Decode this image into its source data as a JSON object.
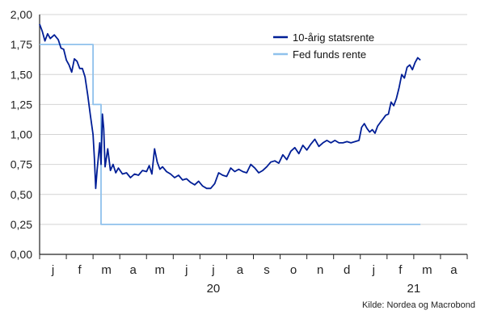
{
  "chart_data": {
    "type": "line",
    "ylim": [
      0,
      2
    ],
    "yticks": [
      "0,00",
      "0,25",
      "0,50",
      "0,75",
      "1,00",
      "1,25",
      "1,50",
      "1,75",
      "2,00"
    ],
    "month_labels": [
      "j",
      "f",
      "m",
      "a",
      "m",
      "j",
      "j",
      "a",
      "s",
      "o",
      "n",
      "d",
      "j",
      "f",
      "m",
      "a"
    ],
    "year_labels": [
      {
        "text": "20",
        "month_index": 6.5
      },
      {
        "text": "21",
        "month_index": 14.0
      }
    ],
    "grid": true,
    "legend_position": "top-right",
    "series": [
      {
        "name": "10-årig statsrente",
        "color": "#001e96",
        "points": [
          [
            0.0,
            1.92
          ],
          [
            0.1,
            1.86
          ],
          [
            0.2,
            1.78
          ],
          [
            0.3,
            1.84
          ],
          [
            0.4,
            1.8
          ],
          [
            0.55,
            1.83
          ],
          [
            0.7,
            1.79
          ],
          [
            0.8,
            1.72
          ],
          [
            0.9,
            1.71
          ],
          [
            1.0,
            1.62
          ],
          [
            1.1,
            1.58
          ],
          [
            1.2,
            1.52
          ],
          [
            1.3,
            1.63
          ],
          [
            1.4,
            1.61
          ],
          [
            1.5,
            1.55
          ],
          [
            1.6,
            1.55
          ],
          [
            1.7,
            1.48
          ],
          [
            1.8,
            1.33
          ],
          [
            1.9,
            1.16
          ],
          [
            2.0,
            1.0
          ],
          [
            2.05,
            0.8
          ],
          [
            2.1,
            0.55
          ],
          [
            2.15,
            0.7
          ],
          [
            2.25,
            0.93
          ],
          [
            2.3,
            0.75
          ],
          [
            2.35,
            1.17
          ],
          [
            2.4,
            1.05
          ],
          [
            2.45,
            0.73
          ],
          [
            2.55,
            0.88
          ],
          [
            2.65,
            0.7
          ],
          [
            2.75,
            0.75
          ],
          [
            2.85,
            0.68
          ],
          [
            2.95,
            0.72
          ],
          [
            3.1,
            0.67
          ],
          [
            3.25,
            0.68
          ],
          [
            3.4,
            0.64
          ],
          [
            3.55,
            0.67
          ],
          [
            3.7,
            0.66
          ],
          [
            3.85,
            0.7
          ],
          [
            4.0,
            0.69
          ],
          [
            4.1,
            0.74
          ],
          [
            4.2,
            0.67
          ],
          [
            4.3,
            0.88
          ],
          [
            4.4,
            0.77
          ],
          [
            4.5,
            0.71
          ],
          [
            4.6,
            0.73
          ],
          [
            4.75,
            0.69
          ],
          [
            4.9,
            0.67
          ],
          [
            5.05,
            0.64
          ],
          [
            5.2,
            0.66
          ],
          [
            5.35,
            0.62
          ],
          [
            5.5,
            0.63
          ],
          [
            5.65,
            0.6
          ],
          [
            5.8,
            0.58
          ],
          [
            5.95,
            0.61
          ],
          [
            6.1,
            0.57
          ],
          [
            6.25,
            0.55
          ],
          [
            6.4,
            0.55
          ],
          [
            6.55,
            0.59
          ],
          [
            6.7,
            0.68
          ],
          [
            6.85,
            0.66
          ],
          [
            7.0,
            0.65
          ],
          [
            7.15,
            0.72
          ],
          [
            7.3,
            0.69
          ],
          [
            7.45,
            0.71
          ],
          [
            7.6,
            0.69
          ],
          [
            7.75,
            0.68
          ],
          [
            7.9,
            0.75
          ],
          [
            8.05,
            0.72
          ],
          [
            8.2,
            0.68
          ],
          [
            8.35,
            0.7
          ],
          [
            8.5,
            0.73
          ],
          [
            8.65,
            0.77
          ],
          [
            8.8,
            0.78
          ],
          [
            8.95,
            0.76
          ],
          [
            9.1,
            0.83
          ],
          [
            9.25,
            0.79
          ],
          [
            9.4,
            0.86
          ],
          [
            9.55,
            0.89
          ],
          [
            9.7,
            0.84
          ],
          [
            9.85,
            0.91
          ],
          [
            10.0,
            0.87
          ],
          [
            10.15,
            0.92
          ],
          [
            10.3,
            0.96
          ],
          [
            10.45,
            0.9
          ],
          [
            10.6,
            0.93
          ],
          [
            10.75,
            0.95
          ],
          [
            10.9,
            0.93
          ],
          [
            11.05,
            0.95
          ],
          [
            11.2,
            0.93
          ],
          [
            11.35,
            0.93
          ],
          [
            11.5,
            0.94
          ],
          [
            11.65,
            0.93
          ],
          [
            11.8,
            0.94
          ],
          [
            11.95,
            0.95
          ],
          [
            12.05,
            1.06
          ],
          [
            12.15,
            1.09
          ],
          [
            12.25,
            1.05
          ],
          [
            12.35,
            1.02
          ],
          [
            12.45,
            1.04
          ],
          [
            12.55,
            1.01
          ],
          [
            12.65,
            1.07
          ],
          [
            12.75,
            1.1
          ],
          [
            12.85,
            1.13
          ],
          [
            12.95,
            1.16
          ],
          [
            13.05,
            1.17
          ],
          [
            13.15,
            1.27
          ],
          [
            13.25,
            1.24
          ],
          [
            13.35,
            1.3
          ],
          [
            13.45,
            1.39
          ],
          [
            13.55,
            1.5
          ],
          [
            13.65,
            1.47
          ],
          [
            13.75,
            1.56
          ],
          [
            13.85,
            1.58
          ],
          [
            13.95,
            1.54
          ],
          [
            14.05,
            1.6
          ],
          [
            14.15,
            1.64
          ],
          [
            14.25,
            1.62
          ]
        ]
      },
      {
        "name": "Fed funds rente",
        "color": "#8fc1ec",
        "points": [
          [
            0.0,
            1.75
          ],
          [
            2.0,
            1.75
          ],
          [
            2.0,
            1.25
          ],
          [
            2.3,
            1.25
          ],
          [
            2.3,
            0.25
          ],
          [
            14.25,
            0.25
          ]
        ]
      }
    ]
  },
  "source_text": "Kilde: Nordea og Macrobond"
}
